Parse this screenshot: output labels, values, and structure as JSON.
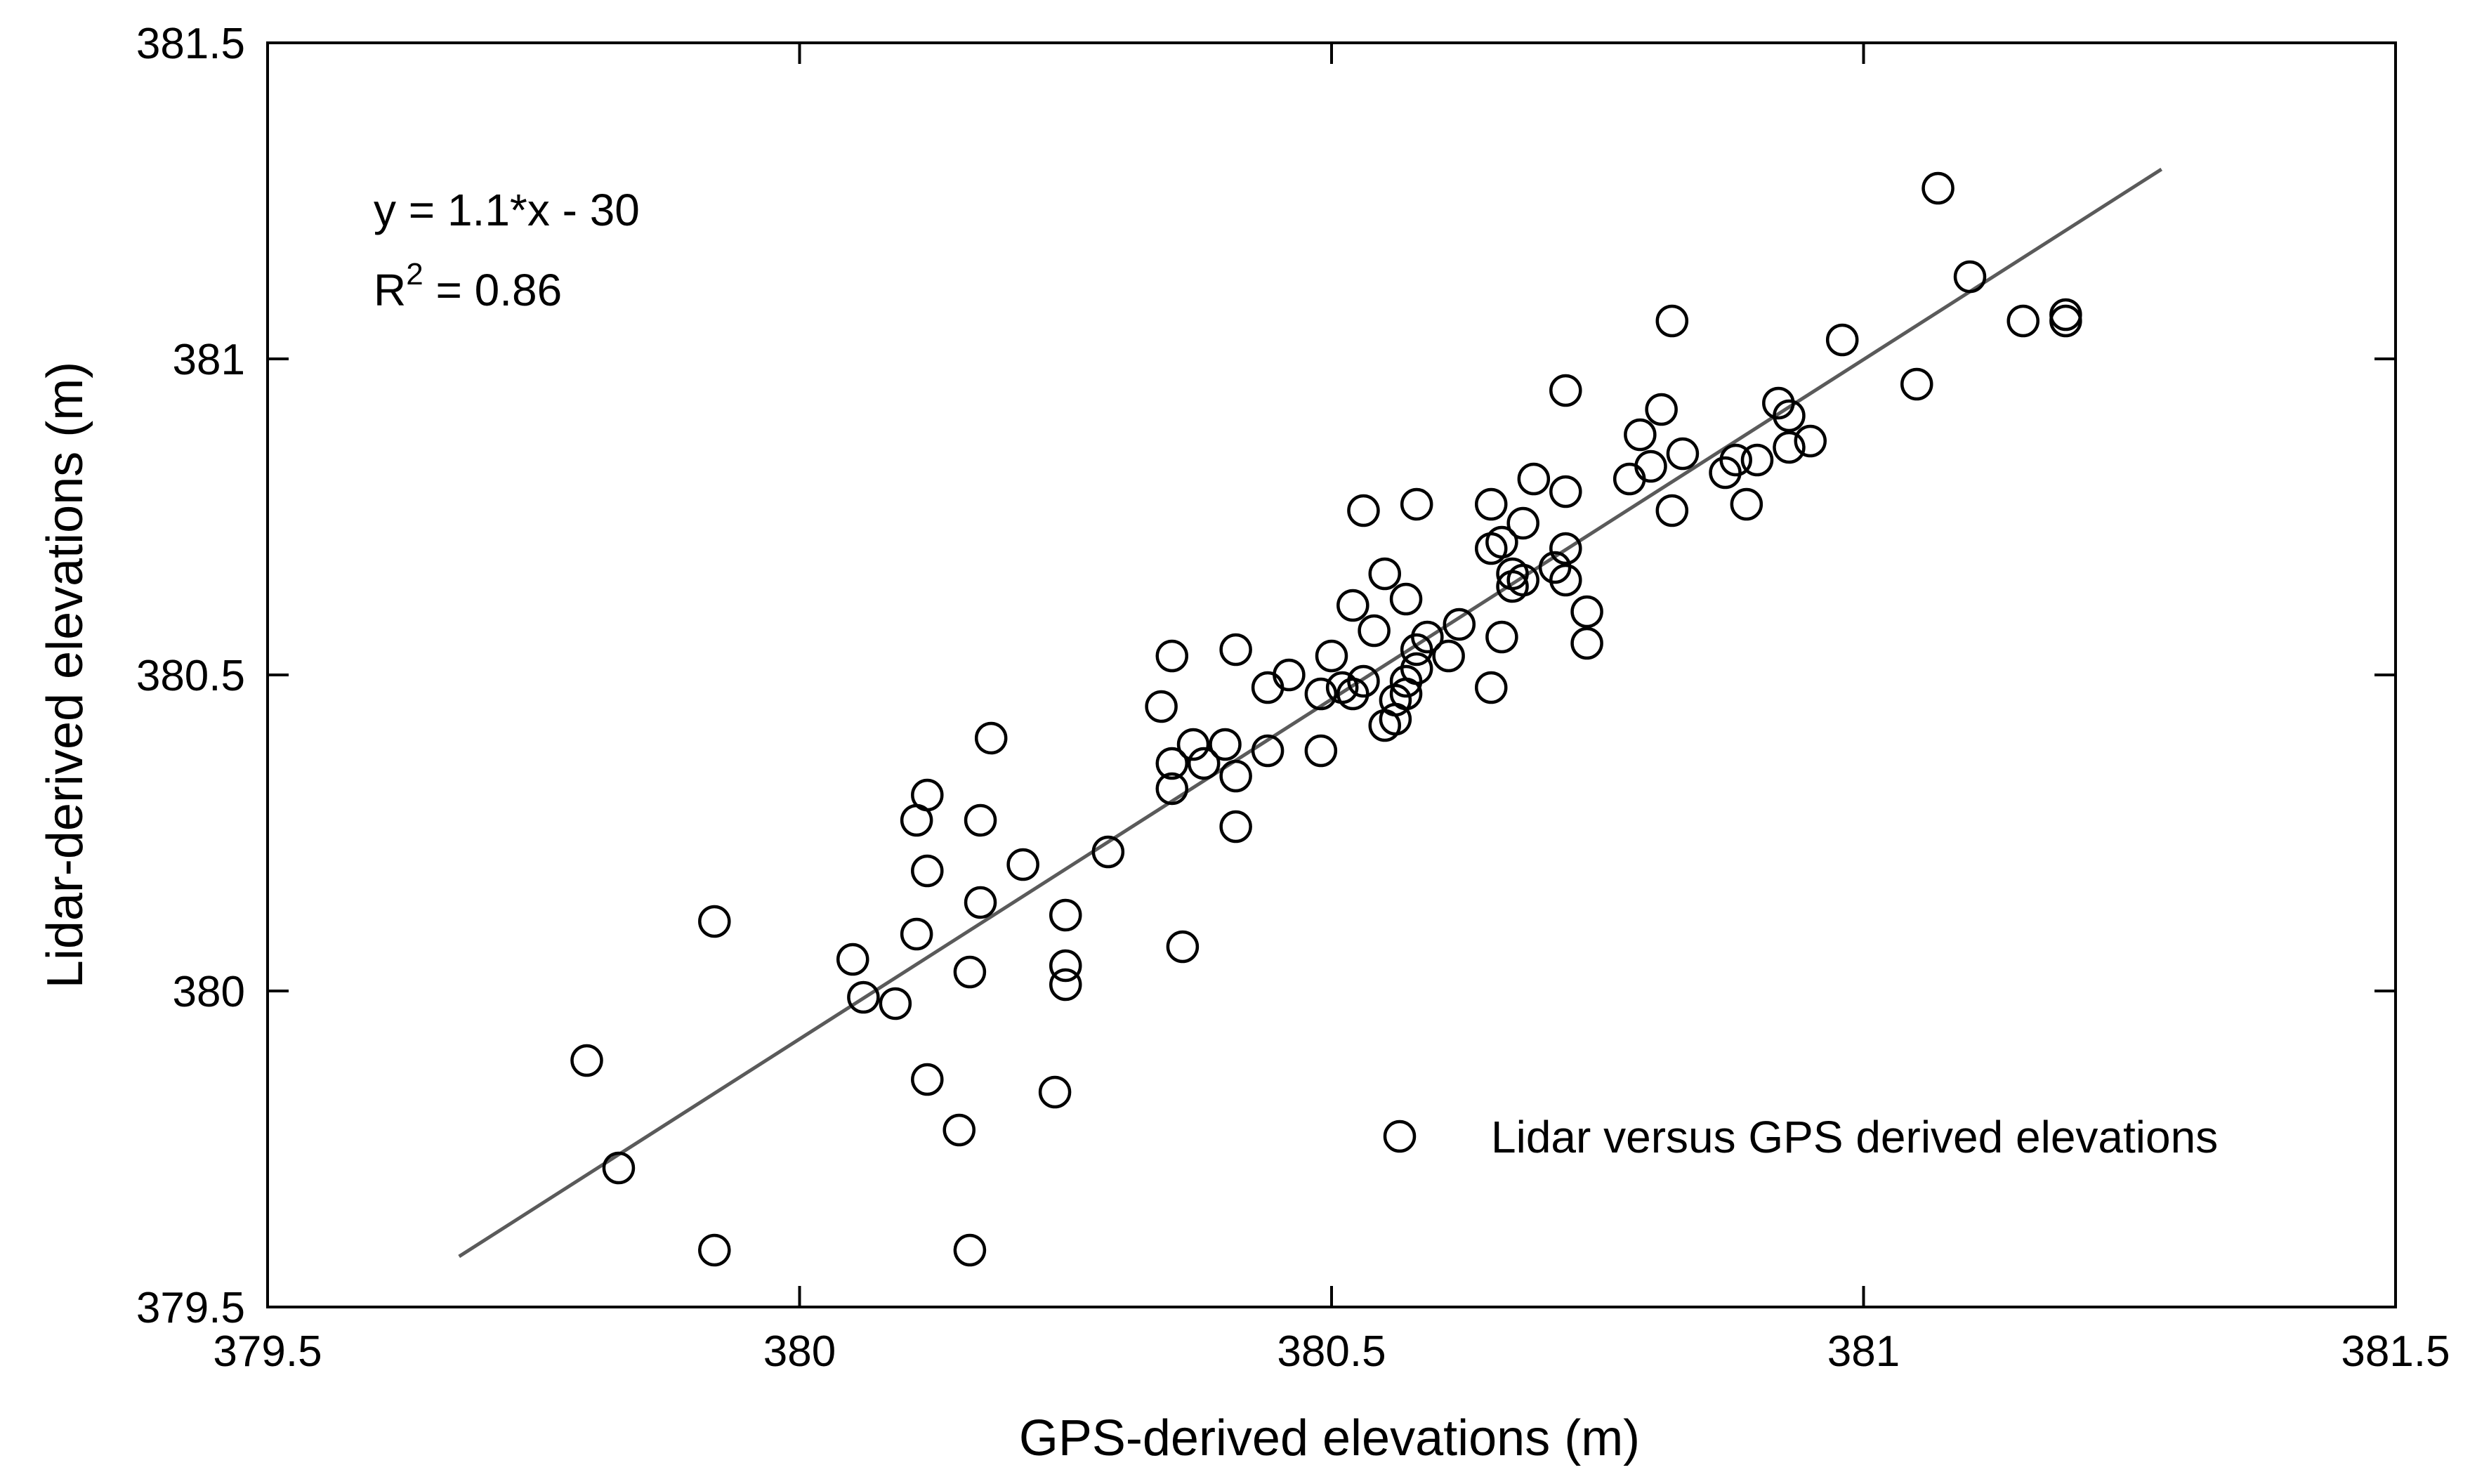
{
  "chart_data": {
    "type": "scatter",
    "title": "",
    "xlabel": "GPS-derived elevations (m)",
    "ylabel": "Lidar-derived elevations (m)",
    "xlim": [
      379.5,
      381.5
    ],
    "ylim": [
      379.5,
      381.5
    ],
    "xticks": [
      379.5,
      380,
      380.5,
      381,
      381.5
    ],
    "yticks": [
      379.5,
      380,
      380.5,
      381,
      381.5
    ],
    "xtick_labels": [
      "379.5",
      "380",
      "380.5",
      "381",
      "381.5"
    ],
    "ytick_labels": [
      "379.5",
      "380",
      "380.5",
      "381",
      "381.5"
    ],
    "grid": false,
    "legend": {
      "label": "Lidar versus GPS derived elevations",
      "position": "bottom-right"
    },
    "annotation": {
      "equation": "y = 1.1*x - 30",
      "r2_base": "R",
      "r2_sup": "2",
      "r2_rest": " = 0.86"
    },
    "fit_line": {
      "x": [
        379.68,
        381.28
      ],
      "y": [
        379.58,
        381.3
      ]
    },
    "series": [
      {
        "name": "Lidar versus GPS derived elevations",
        "points": [
          [
            379.8,
            379.89
          ],
          [
            379.83,
            379.72
          ],
          [
            379.92,
            380.11
          ],
          [
            379.92,
            379.59
          ],
          [
            380.05,
            380.05
          ],
          [
            380.06,
            379.99
          ],
          [
            380.09,
            379.98
          ],
          [
            380.11,
            380.09
          ],
          [
            380.11,
            380.27
          ],
          [
            380.12,
            380.31
          ],
          [
            380.12,
            380.19
          ],
          [
            380.12,
            379.86
          ],
          [
            380.15,
            379.78
          ],
          [
            380.16,
            380.03
          ],
          [
            380.16,
            379.59
          ],
          [
            380.17,
            380.14
          ],
          [
            380.17,
            380.27
          ],
          [
            380.18,
            380.4
          ],
          [
            380.21,
            380.2
          ],
          [
            380.24,
            379.84
          ],
          [
            380.25,
            380.04
          ],
          [
            380.25,
            380.01
          ],
          [
            380.25,
            380.12
          ],
          [
            380.29,
            380.22
          ],
          [
            380.34,
            380.45
          ],
          [
            380.35,
            380.53
          ],
          [
            380.35,
            380.32
          ],
          [
            380.35,
            380.36
          ],
          [
            380.36,
            380.07
          ],
          [
            380.37,
            380.39
          ],
          [
            380.38,
            380.36
          ],
          [
            380.4,
            380.39
          ],
          [
            380.41,
            380.54
          ],
          [
            380.41,
            380.34
          ],
          [
            380.41,
            380.26
          ],
          [
            380.44,
            380.38
          ],
          [
            380.44,
            380.48
          ],
          [
            380.46,
            380.5
          ],
          [
            380.49,
            380.38
          ],
          [
            380.49,
            380.47
          ],
          [
            380.5,
            380.53
          ],
          [
            380.51,
            380.48
          ],
          [
            380.52,
            380.47
          ],
          [
            380.52,
            380.61
          ],
          [
            380.53,
            380.76
          ],
          [
            380.53,
            380.49
          ],
          [
            380.54,
            380.57
          ],
          [
            380.55,
            380.42
          ],
          [
            380.55,
            380.66
          ],
          [
            380.56,
            380.46
          ],
          [
            380.56,
            380.43
          ],
          [
            380.57,
            380.47
          ],
          [
            380.57,
            380.49
          ],
          [
            380.57,
            380.62
          ],
          [
            380.58,
            380.77
          ],
          [
            380.58,
            380.51
          ],
          [
            380.58,
            380.54
          ],
          [
            380.59,
            380.56
          ],
          [
            380.61,
            380.53
          ],
          [
            380.62,
            380.58
          ],
          [
            380.65,
            380.48
          ],
          [
            380.65,
            380.7
          ],
          [
            380.65,
            380.77
          ],
          [
            380.66,
            380.56
          ],
          [
            380.66,
            380.71
          ],
          [
            380.67,
            380.64
          ],
          [
            380.67,
            380.66
          ],
          [
            380.68,
            380.65
          ],
          [
            380.68,
            380.74
          ],
          [
            380.69,
            380.81
          ],
          [
            380.71,
            380.67
          ],
          [
            380.72,
            380.65
          ],
          [
            380.72,
            380.7
          ],
          [
            380.72,
            380.95
          ],
          [
            380.72,
            380.79
          ],
          [
            380.74,
            380.6
          ],
          [
            380.74,
            380.55
          ],
          [
            380.78,
            380.81
          ],
          [
            380.79,
            380.88
          ],
          [
            380.8,
            380.83
          ],
          [
            380.81,
            380.92
          ],
          [
            380.82,
            380.76
          ],
          [
            380.82,
            381.06
          ],
          [
            380.83,
            380.85
          ],
          [
            380.87,
            380.82
          ],
          [
            380.88,
            380.84
          ],
          [
            380.89,
            380.77
          ],
          [
            380.9,
            380.84
          ],
          [
            380.92,
            380.93
          ],
          [
            380.93,
            380.91
          ],
          [
            380.93,
            380.86
          ],
          [
            380.95,
            380.87
          ],
          [
            380.98,
            381.03
          ],
          [
            381.05,
            380.96
          ],
          [
            381.07,
            381.27
          ],
          [
            381.1,
            381.13
          ],
          [
            381.15,
            381.06
          ],
          [
            381.19,
            381.07
          ],
          [
            381.19,
            381.06
          ]
        ]
      }
    ]
  }
}
